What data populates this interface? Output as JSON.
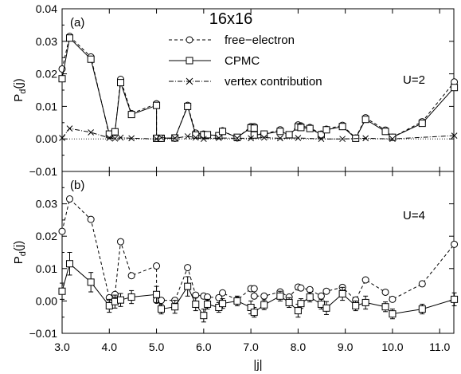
{
  "chart_data": {
    "type": "line",
    "figure_title": "16x16",
    "xlabel": "|j|",
    "x_ticks": [
      "3.0",
      "4.0",
      "5.0",
      "6.0",
      "7.0",
      "8.0",
      "9.0",
      "10.0",
      "11.0"
    ],
    "xlim": [
      3.0,
      11.3
    ],
    "legend": {
      "placement": "top-center",
      "entries": [
        "free−electron",
        "CPMC",
        "vertex contribution"
      ]
    },
    "panels": [
      {
        "id": "a",
        "label": "(a)",
        "annotation": "U=2",
        "ylabel": "P",
        "ylabel_sub": "d",
        "ylabel_suffix": "(j)",
        "ylim": [
          -0.01,
          0.04
        ],
        "y_ticks": [
          "−0.01",
          "0.00",
          "0.01",
          "0.02",
          "0.03",
          "0.04"
        ],
        "zero_line": true,
        "series": [
          {
            "name": "free−electron",
            "style": "dashed-circle",
            "x": [
              3.0,
              3.16,
              3.61,
              4.0,
              4.12,
              4.24,
              4.47,
              5.0,
              5.0,
              5.1,
              5.39,
              5.66,
              5.83,
              6.0,
              6.08,
              6.32,
              6.4,
              6.71,
              7.0,
              7.07,
              7.07,
              7.28,
              7.62,
              7.81,
              8.0,
              8.06,
              8.25,
              8.49,
              8.6,
              8.94,
              9.22,
              9.43,
              9.85,
              10.0,
              10.63,
              11.31
            ],
            "values": [
              0.0215,
              0.0315,
              0.0252,
              0.001,
              0.002,
              0.0183,
              0.0078,
              0.0108,
              0.0002,
              0.0002,
              0.0002,
              0.0103,
              0.0018,
              0.0015,
              0.0012,
              0.001,
              0.0025,
              0.0003,
              0.0038,
              0.0038,
              0.0015,
              0.0015,
              0.0028,
              0.0012,
              0.0043,
              0.004,
              0.0035,
              0.0015,
              0.003,
              0.0042,
              0.0003,
              0.0065,
              0.0027,
              0.0005,
              0.0053,
              0.0175
            ]
          },
          {
            "name": "CPMC",
            "style": "solid-square",
            "x": [
              3.0,
              3.16,
              3.61,
              4.0,
              4.12,
              4.24,
              4.47,
              5.0,
              5.0,
              5.1,
              5.39,
              5.66,
              5.83,
              6.0,
              6.08,
              6.32,
              6.4,
              6.71,
              7.0,
              7.07,
              7.07,
              7.28,
              7.62,
              7.81,
              8.0,
              8.06,
              8.25,
              8.49,
              8.6,
              8.94,
              9.22,
              9.43,
              9.85,
              10.0,
              10.63,
              11.31
            ],
            "values": [
              0.0185,
              0.031,
              0.0245,
              0.0015,
              0.0022,
              0.0173,
              0.0075,
              0.0103,
              0.0002,
              0.0002,
              0.0003,
              0.01,
              0.0012,
              0.0013,
              0.0013,
              0.001,
              0.0023,
              0.0005,
              0.0034,
              0.0033,
              0.0012,
              0.0015,
              0.0023,
              0.0013,
              0.0037,
              0.0035,
              0.0032,
              0.0013,
              0.0028,
              0.0038,
              0.0002,
              0.006,
              0.0023,
              0.0005,
              0.0048,
              0.0158
            ]
          },
          {
            "name": "vertex contribution",
            "style": "dashdot-cross",
            "x": [
              3.0,
              3.16,
              3.61,
              4.0,
              4.12,
              4.24,
              4.47,
              5.0,
              5.1,
              5.39,
              5.66,
              5.83,
              6.0,
              6.32,
              6.71,
              7.0,
              7.28,
              7.62,
              8.0,
              8.49,
              8.94,
              9.43,
              10.0,
              11.31
            ],
            "values": [
              0.0003,
              0.0032,
              0.002,
              0.0003,
              0.0001,
              0.0004,
              0.0002,
              0.0,
              0.0004,
              0.0002,
              0.0008,
              0.0004,
              0.0,
              0.0003,
              0.0002,
              0.0002,
              0.0004,
              0.0002,
              0.0003,
              0.0,
              0.0,
              0.0002,
              0.0,
              0.001
            ]
          }
        ]
      },
      {
        "id": "b",
        "label": "(b)",
        "annotation": "U=4",
        "ylabel": "P",
        "ylabel_sub": "d",
        "ylabel_suffix": "(j)",
        "ylim": [
          -0.01,
          0.04
        ],
        "y_ticks": [
          "−0.01",
          "0.00",
          "0.01",
          "0.02",
          "0.03"
        ],
        "zero_line": false,
        "series": [
          {
            "name": "free−electron",
            "style": "dashed-circle",
            "x": [
              3.0,
              3.16,
              3.61,
              4.0,
              4.12,
              4.24,
              4.47,
              5.0,
              5.0,
              5.1,
              5.39,
              5.66,
              5.83,
              6.0,
              6.08,
              6.32,
              6.4,
              6.71,
              7.0,
              7.07,
              7.07,
              7.28,
              7.62,
              7.81,
              8.0,
              8.06,
              8.25,
              8.49,
              8.6,
              8.94,
              9.22,
              9.43,
              9.85,
              10.0,
              10.63,
              11.31
            ],
            "values": [
              0.0215,
              0.0315,
              0.0252,
              0.001,
              0.002,
              0.0183,
              0.0078,
              0.0108,
              0.0002,
              0.0002,
              0.0002,
              0.0103,
              0.0018,
              0.0015,
              0.0012,
              0.001,
              0.0025,
              0.0003,
              0.0038,
              0.0038,
              0.0015,
              0.0015,
              0.0028,
              0.0012,
              0.0043,
              0.004,
              0.0035,
              0.0015,
              0.003,
              0.0042,
              0.0003,
              0.0065,
              0.0027,
              0.0005,
              0.0053,
              0.0175
            ]
          },
          {
            "name": "CPMC",
            "style": "solid-square-errorbars",
            "x": [
              3.0,
              3.16,
              3.61,
              4.0,
              4.12,
              4.24,
              4.47,
              5.0,
              5.1,
              5.39,
              5.66,
              5.83,
              6.0,
              6.08,
              6.32,
              6.4,
              6.71,
              7.0,
              7.07,
              7.28,
              7.62,
              7.81,
              8.0,
              8.06,
              8.25,
              8.49,
              8.6,
              8.94,
              9.22,
              9.43,
              9.85,
              10.0,
              10.63,
              11.31
            ],
            "values": [
              0.003,
              0.0115,
              0.0058,
              -0.0015,
              -0.0002,
              0.0003,
              0.0012,
              0.002,
              -0.0025,
              -0.0018,
              0.0045,
              -0.001,
              -0.0045,
              -0.001,
              -0.002,
              -0.0008,
              0.0,
              -0.002,
              -0.0035,
              -0.0012,
              0.0015,
              -0.0005,
              -0.003,
              -0.0008,
              0.0012,
              -0.001,
              -0.0022,
              0.0022,
              -0.0015,
              -0.0005,
              -0.0018,
              -0.004,
              -0.0025,
              0.0005
            ],
            "errors": [
              0.0025,
              0.0035,
              0.003,
              0.002,
              0.002,
              0.002,
              0.002,
              0.0025,
              0.0015,
              0.002,
              0.003,
              0.002,
              0.002,
              0.0015,
              0.0015,
              0.0015,
              0.0015,
              0.002,
              0.0015,
              0.0015,
              0.0015,
              0.0015,
              0.002,
              0.0015,
              0.0015,
              0.0015,
              0.002,
              0.002,
              0.0015,
              0.002,
              0.0015,
              0.0015,
              0.0015,
              0.002
            ]
          }
        ]
      }
    ]
  }
}
